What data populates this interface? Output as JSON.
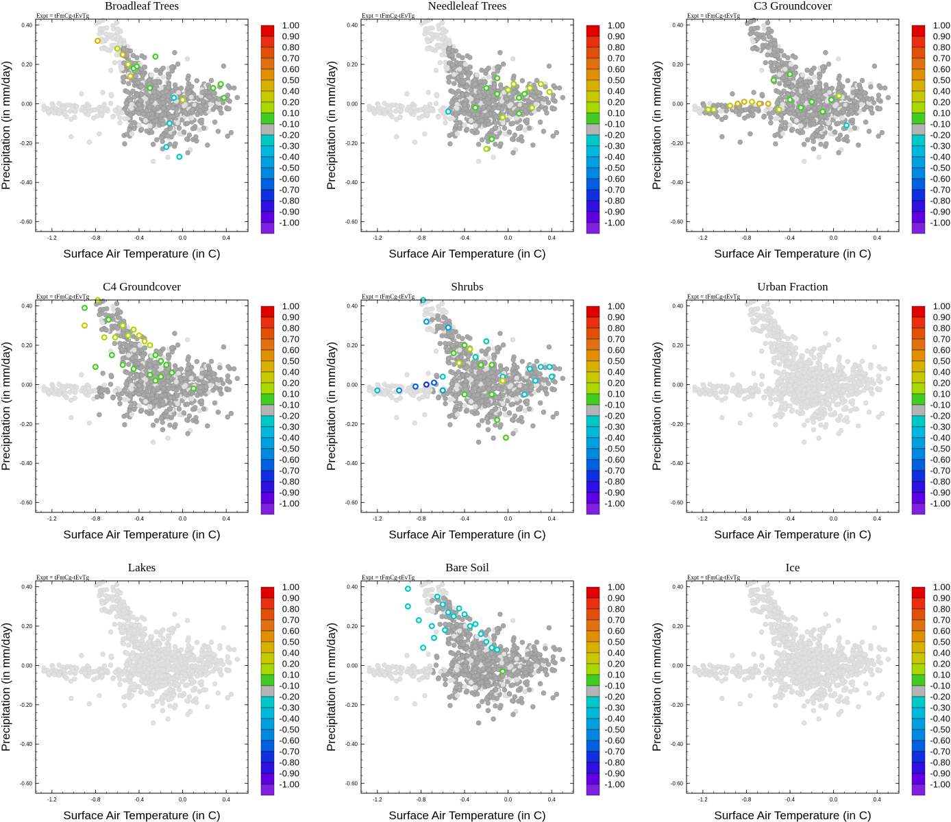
{
  "figure": {
    "experiment_label": "Expt = tFmCg-tEvTg",
    "xlabel": "Surface Air Temperature (in C)",
    "ylabel": "Precipitation (in mm/day)"
  },
  "chart_data": [
    {
      "type": "scatter",
      "title": "Broadleaf Trees",
      "xlim": [
        -1.35,
        0.6
      ],
      "ylim": [
        -0.65,
        0.43
      ],
      "xticks": [
        "-1.2",
        "-0.8",
        "-0.4",
        "0.0",
        "0.4"
      ],
      "xtick_values": [
        -1.2,
        -0.8,
        -0.4,
        0.0,
        0.4
      ],
      "yticks": [
        "0.40",
        "0.20",
        "0.00",
        "-0.20",
        "-0.40",
        "-0.60"
      ],
      "ytick_values": [
        0.4,
        0.2,
        0.0,
        -0.2,
        -0.4,
        -0.6
      ],
      "highlight": [
        [
          -0.78,
          0.32,
          0.45
        ],
        [
          -0.6,
          0.28,
          0.3
        ],
        [
          -0.55,
          0.25,
          0.45
        ],
        [
          -0.5,
          0.2,
          0.3
        ],
        [
          -0.45,
          0.18,
          0.2
        ],
        [
          -0.48,
          0.14,
          0.4
        ],
        [
          -0.42,
          0.19,
          0.2
        ],
        [
          -0.3,
          0.08,
          0.2
        ],
        [
          -0.25,
          0.24,
          0.2
        ],
        [
          0.35,
          0.1,
          0.2
        ],
        [
          0.38,
          0.03,
          0.2
        ],
        [
          0.0,
          0.02,
          0.3
        ],
        [
          -0.08,
          0.03,
          -0.2
        ],
        [
          -0.12,
          -0.1,
          -0.2
        ],
        [
          -0.15,
          -0.22,
          -0.2
        ],
        [
          -0.03,
          -0.27,
          -0.2
        ],
        [
          0.28,
          0.08,
          0.2
        ]
      ]
    },
    {
      "type": "scatter",
      "title": "Needleleaf Trees",
      "xlim": [
        -1.35,
        0.6
      ],
      "ylim": [
        -0.65,
        0.43
      ],
      "xticks": [
        "-1.2",
        "-0.8",
        "-0.4",
        "0.0",
        "0.4"
      ],
      "xtick_values": [
        -1.2,
        -0.8,
        -0.4,
        0.0,
        0.4
      ],
      "yticks": [
        "0.40",
        "0.20",
        "0.00",
        "-0.20",
        "-0.40",
        "-0.60"
      ],
      "ytick_values": [
        0.4,
        0.2,
        0.0,
        -0.2,
        -0.4,
        -0.6
      ],
      "highlight": [
        [
          -0.55,
          -0.04,
          -0.2
        ],
        [
          -0.2,
          0.08,
          0.2
        ],
        [
          -0.1,
          0.05,
          0.2
        ],
        [
          0.0,
          0.07,
          0.3
        ],
        [
          0.1,
          0.03,
          0.2
        ],
        [
          0.2,
          0.08,
          0.3
        ],
        [
          0.3,
          0.1,
          0.3
        ],
        [
          0.38,
          0.06,
          0.3
        ],
        [
          0.22,
          -0.02,
          0.3
        ],
        [
          0.1,
          -0.05,
          0.2
        ],
        [
          -0.05,
          -0.07,
          0.3
        ],
        [
          -0.15,
          -0.18,
          0.2
        ],
        [
          -0.2,
          -0.23,
          0.3
        ],
        [
          -0.3,
          -0.02,
          0.2
        ],
        [
          0.05,
          0.1,
          0.3
        ],
        [
          0.15,
          0.05,
          0.2
        ],
        [
          -0.1,
          0.13,
          0.2
        ]
      ]
    },
    {
      "type": "scatter",
      "title": "C3 Groundcover",
      "xlim": [
        -1.35,
        0.6
      ],
      "ylim": [
        -0.65,
        0.43
      ],
      "xticks": [
        "-1.2",
        "-0.8",
        "-0.4",
        "0.0",
        "0.4"
      ],
      "xtick_values": [
        -1.2,
        -0.8,
        -0.4,
        0.0,
        0.4
      ],
      "yticks": [
        "0.40",
        "0.20",
        "0.00",
        "-0.20",
        "-0.40",
        "-0.60"
      ],
      "ytick_values": [
        0.4,
        0.2,
        0.0,
        -0.2,
        -0.4,
        -0.6
      ],
      "highlight": [
        [
          -1.15,
          -0.03,
          0.3
        ],
        [
          -1.1,
          -0.03,
          0.3
        ],
        [
          -0.95,
          -0.01,
          0.4
        ],
        [
          -0.88,
          0.0,
          0.5
        ],
        [
          -0.82,
          0.01,
          0.5
        ],
        [
          -0.75,
          0.01,
          0.4
        ],
        [
          -0.68,
          0.0,
          0.5
        ],
        [
          -0.6,
          0.0,
          0.45
        ],
        [
          -0.5,
          -0.03,
          0.3
        ],
        [
          -0.4,
          0.02,
          0.2
        ],
        [
          -0.3,
          -0.02,
          0.2
        ],
        [
          -0.2,
          0.01,
          0.2
        ],
        [
          -0.1,
          -0.04,
          0.2
        ],
        [
          -0.02,
          0.02,
          0.2
        ],
        [
          0.05,
          0.04,
          0.3
        ],
        [
          0.12,
          -0.11,
          -0.2
        ],
        [
          -0.55,
          0.12,
          0.2
        ],
        [
          -0.4,
          0.15,
          0.2
        ]
      ]
    },
    {
      "type": "scatter",
      "title": "C4 Groundcover",
      "xlim": [
        -1.35,
        0.6
      ],
      "ylim": [
        -0.65,
        0.43
      ],
      "xticks": [
        "-1.2",
        "-0.8",
        "-0.4",
        "0.0",
        "0.4"
      ],
      "xtick_values": [
        -1.2,
        -0.8,
        -0.4,
        0.0,
        0.4
      ],
      "yticks": [
        "0.40",
        "0.20",
        "0.00",
        "-0.20",
        "-0.40",
        "-0.60"
      ],
      "ytick_values": [
        0.4,
        0.2,
        0.0,
        -0.2,
        -0.4,
        -0.6
      ],
      "highlight": [
        [
          -0.9,
          0.39,
          0.2
        ],
        [
          -0.9,
          0.3,
          0.4
        ],
        [
          -0.78,
          0.43,
          0.3
        ],
        [
          -0.72,
          0.24,
          0.3
        ],
        [
          -0.68,
          0.33,
          0.2
        ],
        [
          -0.62,
          0.24,
          0.3
        ],
        [
          -0.55,
          0.3,
          0.3
        ],
        [
          -0.5,
          0.25,
          0.3
        ],
        [
          -0.45,
          0.28,
          0.3
        ],
        [
          -0.4,
          0.25,
          0.4
        ],
        [
          -0.35,
          0.22,
          0.4
        ],
        [
          -0.3,
          0.2,
          0.3
        ],
        [
          -0.25,
          0.15,
          0.2
        ],
        [
          -0.2,
          0.12,
          0.2
        ],
        [
          -0.15,
          0.1,
          0.2
        ],
        [
          -0.65,
          0.15,
          0.2
        ],
        [
          -0.55,
          0.1,
          0.2
        ],
        [
          -0.45,
          0.08,
          0.2
        ],
        [
          -0.3,
          0.05,
          0.2
        ],
        [
          -0.2,
          0.04,
          0.2
        ],
        [
          -0.8,
          0.09,
          0.2
        ],
        [
          0.1,
          -0.02,
          0.2
        ],
        [
          -0.25,
          0.02,
          0.2
        ],
        [
          -0.1,
          0.06,
          0.2
        ]
      ]
    },
    {
      "type": "scatter",
      "title": "Shrubs",
      "xlim": [
        -1.35,
        0.6
      ],
      "ylim": [
        -0.65,
        0.43
      ],
      "xticks": [
        "-1.2",
        "-0.8",
        "-0.4",
        "0.0",
        "0.4"
      ],
      "xtick_values": [
        -1.2,
        -0.8,
        -0.4,
        0.0,
        0.4
      ],
      "yticks": [
        "0.40",
        "0.20",
        "0.00",
        "-0.20",
        "-0.40",
        "-0.60"
      ],
      "ytick_values": [
        0.4,
        0.2,
        0.0,
        -0.2,
        -0.4,
        -0.6
      ],
      "highlight": [
        [
          -0.78,
          0.43,
          -0.2
        ],
        [
          -0.75,
          0.32,
          -0.4
        ],
        [
          -0.55,
          0.29,
          -0.4
        ],
        [
          -0.4,
          0.2,
          0.2
        ],
        [
          -0.35,
          0.18,
          0.3
        ],
        [
          -0.3,
          0.14,
          -0.2
        ],
        [
          -0.2,
          0.22,
          -0.2
        ],
        [
          -0.25,
          0.1,
          0.2
        ],
        [
          -0.15,
          0.1,
          0.2
        ],
        [
          -0.5,
          0.16,
          0.2
        ],
        [
          -0.45,
          0.11,
          0.3
        ],
        [
          0.2,
          0.08,
          -0.2
        ],
        [
          0.3,
          0.09,
          -0.2
        ],
        [
          0.38,
          0.09,
          -0.2
        ],
        [
          0.4,
          0.04,
          -0.2
        ],
        [
          0.25,
          0.02,
          -0.2
        ],
        [
          -0.05,
          0.04,
          -0.2
        ],
        [
          -1.2,
          -0.03,
          -0.3
        ],
        [
          -1.0,
          -0.03,
          -0.5
        ],
        [
          -0.85,
          -0.01,
          -0.6
        ],
        [
          -0.75,
          0.0,
          -0.7
        ],
        [
          -0.68,
          0.01,
          -0.6
        ],
        [
          -0.6,
          -0.03,
          -0.4
        ],
        [
          -0.05,
          0.02,
          0.4
        ],
        [
          -0.15,
          -0.05,
          0.2
        ],
        [
          -0.4,
          -0.05,
          0.2
        ],
        [
          -0.1,
          -0.18,
          0.2
        ],
        [
          -0.02,
          -0.27,
          0.2
        ],
        [
          0.15,
          -0.05,
          -0.2
        ],
        [
          -0.6,
          0.04,
          -0.2
        ]
      ]
    },
    {
      "type": "scatter",
      "title": "Urban Fraction",
      "xlim": [
        -1.35,
        0.6
      ],
      "ylim": [
        -0.65,
        0.43
      ],
      "xticks": [
        "-1.2",
        "-0.8",
        "-0.4",
        "0.0",
        "0.4"
      ],
      "xtick_values": [
        -1.2,
        -0.8,
        -0.4,
        0.0,
        0.4
      ],
      "yticks": [
        "0.40",
        "0.20",
        "0.00",
        "-0.20",
        "-0.40",
        "-0.60"
      ],
      "ytick_values": [
        0.4,
        0.2,
        0.0,
        -0.2,
        -0.4,
        -0.6
      ],
      "highlight": []
    },
    {
      "type": "scatter",
      "title": "Lakes",
      "xlim": [
        -1.35,
        0.6
      ],
      "ylim": [
        -0.65,
        0.43
      ],
      "xticks": [
        "-1.2",
        "-0.8",
        "-0.4",
        "0.0",
        "0.4"
      ],
      "xtick_values": [
        -1.2,
        -0.8,
        -0.4,
        0.0,
        0.4
      ],
      "yticks": [
        "0.40",
        "0.20",
        "0.00",
        "-0.20",
        "-0.40",
        "-0.60"
      ],
      "ytick_values": [
        0.4,
        0.2,
        0.0,
        -0.2,
        -0.4,
        -0.6
      ],
      "highlight": []
    },
    {
      "type": "scatter",
      "title": "Bare Soil",
      "xlim": [
        -1.35,
        0.6
      ],
      "ylim": [
        -0.65,
        0.43
      ],
      "xticks": [
        "-1.2",
        "-0.8",
        "-0.4",
        "0.0",
        "0.4"
      ],
      "xtick_values": [
        -1.2,
        -0.8,
        -0.4,
        0.0,
        0.4
      ],
      "yticks": [
        "0.40",
        "0.20",
        "0.00",
        "-0.20",
        "-0.40",
        "-0.60"
      ],
      "ytick_values": [
        0.4,
        0.2,
        0.0,
        -0.2,
        -0.4,
        -0.6
      ],
      "highlight": [
        [
          -0.92,
          0.39,
          -0.2
        ],
        [
          -0.92,
          0.3,
          -0.2
        ],
        [
          -0.82,
          0.23,
          -0.2
        ],
        [
          -0.78,
          0.09,
          -0.2
        ],
        [
          -0.7,
          0.2,
          -0.2
        ],
        [
          -0.65,
          0.35,
          -0.2
        ],
        [
          -0.6,
          0.31,
          -0.2
        ],
        [
          -0.55,
          0.27,
          -0.2
        ],
        [
          -0.5,
          0.25,
          -0.2
        ],
        [
          -0.45,
          0.29,
          -0.2
        ],
        [
          -0.4,
          0.26,
          -0.2
        ],
        [
          -0.35,
          0.2,
          -0.2
        ],
        [
          -0.3,
          0.21,
          -0.2
        ],
        [
          -0.25,
          0.16,
          -0.2
        ],
        [
          -0.2,
          0.12,
          -0.2
        ],
        [
          -0.15,
          0.09,
          -0.2
        ],
        [
          -0.1,
          0.08,
          -0.2
        ],
        [
          -0.05,
          -0.03,
          0.2
        ],
        [
          -0.68,
          0.14,
          -0.2
        ],
        [
          -0.58,
          0.18,
          -0.2
        ]
      ]
    },
    {
      "type": "scatter",
      "title": "Ice",
      "xlim": [
        -1.35,
        0.6
      ],
      "ylim": [
        -0.65,
        0.43
      ],
      "xticks": [
        "-1.2",
        "-0.8",
        "-0.4",
        "0.0",
        "0.4"
      ],
      "xtick_values": [
        -1.2,
        -0.8,
        -0.4,
        0.0,
        0.4
      ],
      "yticks": [
        "0.40",
        "0.20",
        "0.00",
        "-0.20",
        "-0.40",
        "-0.60"
      ],
      "ytick_values": [
        0.4,
        0.2,
        0.0,
        -0.2,
        -0.4,
        -0.6
      ],
      "highlight": []
    }
  ],
  "colorbar": {
    "labels": [
      "1.00",
      "0.90",
      "0.80",
      "0.70",
      "0.60",
      "0.50",
      "0.40",
      "0.20",
      "0.10",
      "-0.10",
      "-0.20",
      "-0.30",
      "-0.40",
      "-0.50",
      "-0.60",
      "-0.70",
      "-0.80",
      "-0.90",
      "-1.00"
    ],
    "colors": [
      "#e00000",
      "#e83010",
      "#e05008",
      "#e07010",
      "#e09000",
      "#d8b000",
      "#c8c800",
      "#a8d800",
      "#40cc20",
      "#b4b4b4",
      "#00c8c8",
      "#00b8dc",
      "#00a0e0",
      "#0088e0",
      "#0060e0",
      "#1030e0",
      "#3010e0",
      "#6000e0",
      "#8020e0"
    ]
  },
  "colors": {
    "background_points": "#e0e0e0",
    "neutral_points": "#a8a8a8",
    "frame": "#000000"
  }
}
